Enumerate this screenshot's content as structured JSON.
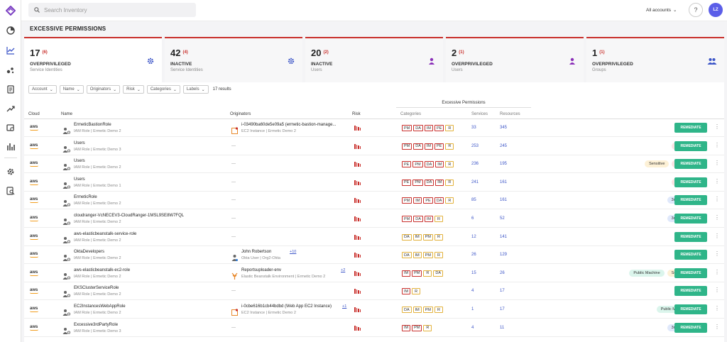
{
  "topbar": {
    "search_placeholder": "Search Inventory",
    "accounts_label": "All accounts",
    "help": "?",
    "avatar": "LZ"
  },
  "sidebar": {
    "items": [
      "dashboard-icon",
      "analytics-icon",
      "graph-icon",
      "report-icon",
      "trends-icon",
      "inventory-icon",
      "charts-icon",
      "settings-icon",
      "audit-icon"
    ]
  },
  "page": {
    "title": "EXCESSIVE PERMISSIONS"
  },
  "cards": [
    {
      "count": "17",
      "delta": "(6)",
      "label": "OVERPRIVILEGED",
      "sub": "Service Identities",
      "icon": "gear-icon",
      "color": "#3b54c7"
    },
    {
      "count": "42",
      "delta": "(4)",
      "label": "INACTIVE",
      "sub": "Service Identities",
      "icon": "gear-icon",
      "color": "#3b54c7"
    },
    {
      "count": "20",
      "delta": "(2)",
      "label": "INACTIVE",
      "sub": "Users",
      "icon": "user-icon",
      "color": "#8a2fb8"
    },
    {
      "count": "2",
      "delta": "(1)",
      "label": "OVERPRIVILEGED",
      "sub": "Users",
      "icon": "user-icon",
      "color": "#8a2fb8"
    },
    {
      "count": "1",
      "delta": "(1)",
      "label": "OVERPRIVILEGED",
      "sub": "Groups",
      "icon": "group-icon",
      "color": "#3b54c7"
    }
  ],
  "filters": {
    "items": [
      "Account",
      "Name",
      "Originators",
      "Risk",
      "Categories",
      "Labels"
    ],
    "result_count": "17 results"
  },
  "table": {
    "headers": {
      "cloud": "Cloud",
      "name": "Name",
      "originators": "Originators",
      "risk": "Risk",
      "excessive": "Excessive Permissions",
      "categories": "Categories",
      "services": "Services",
      "resources": "Resources"
    },
    "remediate_label": "REMEDIATE",
    "rows": [
      {
        "cloud": "aws",
        "name": "ErmeticBastionRole",
        "sub": "IAM Role | Ermetic Demo 2",
        "orig_name": "i-03490ba60de5e09a5 (ermetic-bastion-manage...",
        "orig_sub": "EC2 Instance | Ermetic Demo 2",
        "orig_more": "",
        "orig_type": "ec2",
        "cats": [
          [
            "PM",
            "red"
          ],
          [
            "DA",
            "red"
          ],
          [
            "IM",
            "red"
          ],
          [
            "PE",
            "red"
          ],
          [
            "R",
            "yel"
          ]
        ],
        "services": "33",
        "resources": "345",
        "badges": []
      },
      {
        "cloud": "aws",
        "name": "Users",
        "sub": "IAM Role | Ermetic Demo 3",
        "orig_name": "",
        "orig_sub": "",
        "orig_more": "",
        "orig_type": "",
        "cats": [
          [
            "PM",
            "red"
          ],
          [
            "DA",
            "red"
          ],
          [
            "IM",
            "red"
          ],
          [
            "PE",
            "red"
          ],
          [
            "R",
            "yel"
          ]
        ],
        "services": "253",
        "resources": "245",
        "badges": [
          [
            "Admin",
            "pink"
          ]
        ]
      },
      {
        "cloud": "aws",
        "name": "Users",
        "sub": "IAM Role | Ermetic Demo 2",
        "orig_name": "",
        "orig_sub": "",
        "orig_more": "",
        "orig_type": "",
        "cats": [
          [
            "PE",
            "red"
          ],
          [
            "PM",
            "red"
          ],
          [
            "DA",
            "red"
          ],
          [
            "IM",
            "red"
          ],
          [
            "R",
            "yel"
          ]
        ],
        "services": "236",
        "resources": "195",
        "badges": [
          [
            "Sensitive",
            "yellow"
          ],
          [
            "Admin",
            "pink"
          ]
        ]
      },
      {
        "cloud": "aws",
        "name": "Users",
        "sub": "IAM Role | Ermetic Demo 1",
        "orig_name": "",
        "orig_sub": "",
        "orig_more": "",
        "orig_type": "",
        "cats": [
          [
            "PE",
            "red"
          ],
          [
            "PM",
            "red"
          ],
          [
            "DA",
            "red"
          ],
          [
            "IM",
            "red"
          ],
          [
            "R",
            "yel"
          ]
        ],
        "services": "241",
        "resources": "161",
        "badges": [
          [
            "Admin",
            "pink"
          ]
        ]
      },
      {
        "cloud": "aws",
        "name": "ErmeticRole",
        "sub": "IAM Role | Ermetic Demo 2",
        "orig_name": "",
        "orig_sub": "",
        "orig_more": "",
        "orig_type": "",
        "cats": [
          [
            "PM",
            "red"
          ],
          [
            "IM",
            "red"
          ],
          [
            "PE",
            "red"
          ],
          [
            "DA",
            "red"
          ],
          [
            "R",
            "yel"
          ]
        ],
        "services": "85",
        "resources": "161",
        "badges": [
          [
            "3rd Party",
            "blue"
          ]
        ]
      },
      {
        "cloud": "aws",
        "name": "cloudranger-VcNECEV3-CloudRanger-1MSL9SE8W7FQL",
        "sub": "IAM Role | Ermetic Demo 2",
        "orig_name": "",
        "orig_sub": "",
        "orig_more": "",
        "orig_type": "",
        "cats": [
          [
            "PM",
            "red"
          ],
          [
            "DA",
            "red"
          ],
          [
            "IM",
            "red"
          ],
          [
            "R",
            "yel"
          ]
        ],
        "services": "6",
        "resources": "52",
        "badges": [
          [
            "3rd Party",
            "blue"
          ]
        ]
      },
      {
        "cloud": "aws",
        "name": "aws-elasticbeanstalk-service-role",
        "sub": "IAM Role | Ermetic Demo 2",
        "orig_name": "",
        "orig_sub": "",
        "orig_more": "",
        "orig_type": "",
        "cats": [
          [
            "DA",
            "yel"
          ],
          [
            "IM",
            "yel"
          ],
          [
            "PM",
            "yel"
          ],
          [
            "R",
            "yel"
          ]
        ],
        "services": "12",
        "resources": "141",
        "badges": []
      },
      {
        "cloud": "aws",
        "name": "OktaDevelopers",
        "sub": "IAM Role | Ermetic Demo 2",
        "orig_name": "John Robertson",
        "orig_sub": "Okta User | Org2-Okta",
        "orig_more": "+10",
        "orig_type": "user",
        "cats": [
          [
            "DA",
            "yel"
          ],
          [
            "IM",
            "yel"
          ],
          [
            "PM",
            "yel"
          ],
          [
            "R",
            "yel"
          ]
        ],
        "services": "26",
        "resources": "129",
        "badges": []
      },
      {
        "cloud": "aws",
        "name": "aws-elasticbeanstalk-ec2-role",
        "sub": "IAM Role | Ermetic Demo 2",
        "orig_name": "Reportsuploader-env",
        "orig_sub": "Elastic Beanstalk Environment | Ermetic Demo 2",
        "orig_more": "+2",
        "orig_type": "eb",
        "cats": [
          [
            "IM",
            "red"
          ],
          [
            "PM",
            "red"
          ],
          [
            "R",
            "yel"
          ],
          [
            "DA",
            "yel"
          ]
        ],
        "services": "15",
        "resources": "26",
        "badges": [
          [
            "Public Machine",
            "green"
          ],
          [
            "Sensitive",
            "yellow"
          ]
        ]
      },
      {
        "cloud": "aws",
        "name": "EKSClusterServiceRole",
        "sub": "IAM Role | Ermetic Demo 2",
        "orig_name": "",
        "orig_sub": "",
        "orig_more": "",
        "orig_type": "",
        "cats": [
          [
            "IM",
            "red"
          ],
          [
            "R",
            "yel"
          ]
        ],
        "services": "4",
        "resources": "17",
        "badges": []
      },
      {
        "cloud": "aws",
        "name": "EC2InstancesWebAppRole",
        "sub": "IAM Role | Ermetic Demo 2",
        "orig_name": "i-0cbe616b1cb44bdbd (Web App EC2 Instance)",
        "orig_sub": "EC2 Instance | Ermetic Demo 2",
        "orig_more": "+1",
        "orig_type": "ec2",
        "cats": [
          [
            "DA",
            "yel"
          ],
          [
            "IM",
            "yel"
          ],
          [
            "PM",
            "yel"
          ],
          [
            "R",
            "yel"
          ]
        ],
        "services": "1",
        "resources": "17",
        "badges": [
          [
            "Public Machine",
            "green"
          ]
        ]
      },
      {
        "cloud": "aws",
        "name": "Excessive3rdPartyRole",
        "sub": "IAM Role | Ermetic Demo 3",
        "orig_name": "",
        "orig_sub": "",
        "orig_more": "",
        "orig_type": "",
        "cats": [
          [
            "IM",
            "red"
          ],
          [
            "PM",
            "red"
          ],
          [
            "R",
            "yel"
          ]
        ],
        "services": "4",
        "resources": "11",
        "badges": [
          [
            "3rd Party",
            "blue"
          ]
        ]
      }
    ]
  },
  "dash": "—"
}
